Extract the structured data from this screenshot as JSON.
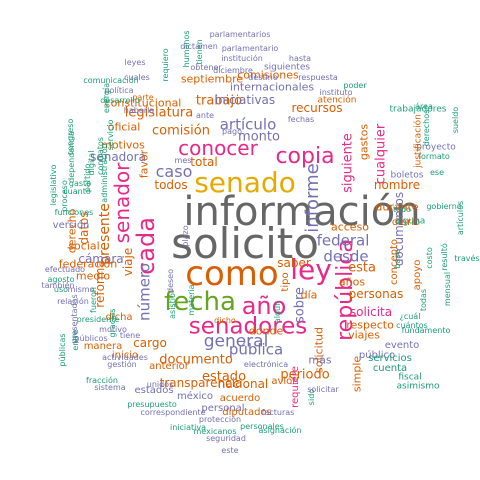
{
  "palette": {
    "teal": "#1b9e77",
    "orange": "#d95f02",
    "purple": "#7570b3",
    "magenta": "#e7298a",
    "green": "#66a61e",
    "gold": "#e6ab02",
    "brown": "#a6761d",
    "gray": "#666666"
  },
  "words": [
    {
      "text": "información"
    },
    {
      "text": "solicito"
    },
    {
      "text": "como"
    },
    {
      "text": "senado"
    },
    {
      "text": "fecha"
    },
    {
      "text": "senadores"
    },
    {
      "text": "año"
    },
    {
      "text": "ley"
    },
    {
      "text": "copia"
    },
    {
      "text": "conocer"
    },
    {
      "text": "cada"
    },
    {
      "text": "república"
    },
    {
      "text": "senador"
    },
    {
      "text": "general"
    },
    {
      "text": "informe"
    },
    {
      "text": "caso"
    },
    {
      "text": "artículo"
    },
    {
      "text": "desde"
    },
    {
      "text": "federal"
    },
    {
      "text": "pública"
    },
    {
      "text": "número"
    },
    {
      "text": "presente"
    },
    {
      "text": "periodo"
    },
    {
      "text": "estado"
    },
    {
      "text": "documento"
    },
    {
      "text": "comisión"
    },
    {
      "text": "legislatura"
    },
    {
      "text": "trabajo"
    },
    {
      "text": "monto"
    },
    {
      "text": "cualquier"
    },
    {
      "text": "siguiente"
    },
    {
      "text": "nombre"
    },
    {
      "text": "personas"
    },
    {
      "text": "solicita"
    },
    {
      "text": "esta"
    },
    {
      "text": "saber"
    },
    {
      "text": "sobre"
    },
    {
      "text": "iniciativas"
    },
    {
      "text": "recursos"
    },
    {
      "text": "documentos"
    },
    {
      "text": "transparencia"
    },
    {
      "text": "nacional"
    },
    {
      "text": "cámara"
    },
    {
      "text": "viaje"
    },
    {
      "text": "senadora"
    },
    {
      "text": "cargo"
    },
    {
      "text": "total"
    },
    {
      "text": "todos"
    },
    {
      "text": "derecho"
    },
    {
      "text": "reforma"
    },
    {
      "text": "datos"
    },
    {
      "text": "gastos"
    },
    {
      "text": "internacionales"
    },
    {
      "text": "constitucional"
    },
    {
      "text": "septiembre"
    },
    {
      "text": "comisiones"
    },
    {
      "text": "motivos"
    },
    {
      "text": "oficial"
    },
    {
      "text": "favor"
    },
    {
      "text": "solicitud"
    },
    {
      "text": "respecto"
    },
    {
      "text": "durante"
    },
    {
      "text": "viajes"
    },
    {
      "text": "acceso"
    },
    {
      "text": "años"
    },
    {
      "text": "día"
    },
    {
      "text": "donde"
    },
    {
      "text": "más"
    },
    {
      "text": "tipo"
    },
    {
      "text": "medio"
    },
    {
      "text": "social"
    },
    {
      "text": "federación"
    },
    {
      "text": "versión"
    },
    {
      "text": "dicha"
    },
    {
      "text": "manera"
    },
    {
      "text": "inicio"
    },
    {
      "text": "anterior"
    },
    {
      "text": "estados"
    },
    {
      "text": "méxico"
    },
    {
      "text": "personal"
    },
    {
      "text": "acuerdo"
    },
    {
      "text": "diputados"
    },
    {
      "text": "avión"
    },
    {
      "text": "requiere"
    },
    {
      "text": "simple"
    },
    {
      "text": "público"
    },
    {
      "text": "concepto"
    },
    {
      "text": "diario"
    },
    {
      "text": "evento"
    },
    {
      "text": "servicios"
    },
    {
      "text": "cuenta"
    },
    {
      "text": "fiscal"
    },
    {
      "text": "asimismo"
    },
    {
      "text": "apoyo"
    },
    {
      "text": "costo"
    },
    {
      "text": "resultó"
    },
    {
      "text": "través"
    },
    {
      "text": "base"
    },
    {
      "text": "todo"
    },
    {
      "text": "gobierno"
    },
    {
      "text": "artículos"
    },
    {
      "text": "alguna"
    },
    {
      "text": "boletos"
    },
    {
      "text": "ese"
    },
    {
      "text": "proyecto"
    },
    {
      "text": "formato"
    },
    {
      "text": "justificación"
    },
    {
      "text": "derechos"
    },
    {
      "text": "área"
    },
    {
      "text": "sueldo"
    },
    {
      "text": "trabajadores"
    },
    {
      "text": "fundamento"
    },
    {
      "text": "mensual"
    },
    {
      "text": "¿cuál"
    },
    {
      "text": "cuántos"
    },
    {
      "text": "todas"
    },
    {
      "text": "parlamentarios"
    },
    {
      "text": "dictamen"
    },
    {
      "text": "parlamentario"
    },
    {
      "text": "institución"
    },
    {
      "text": "hasta"
    },
    {
      "text": "obtener"
    },
    {
      "text": "siguientes"
    },
    {
      "text": "diciembre"
    },
    {
      "text": "destino"
    },
    {
      "text": "respuesta"
    },
    {
      "text": "instituto"
    },
    {
      "text": "poder"
    },
    {
      "text": "atención"
    },
    {
      "text": "fechas"
    },
    {
      "text": "parte"
    },
    {
      "text": "ante"
    },
    {
      "text": "pago"
    },
    {
      "text": "mes"
    },
    {
      "text": "leyes"
    },
    {
      "text": "cuales"
    },
    {
      "text": "requiero"
    },
    {
      "text": "humanos"
    },
    {
      "text": "tienen"
    },
    {
      "text": "comunicación"
    },
    {
      "text": "política"
    },
    {
      "text": "desarrollo"
    },
    {
      "text": "haberla"
    },
    {
      "text": "energía"
    },
    {
      "text": "servicio"
    },
    {
      "text": "congreso"
    },
    {
      "text": "dependencia"
    },
    {
      "text": "gasto"
    },
    {
      "text": "cuanto"
    },
    {
      "text": "partido"
    },
    {
      "text": "digital"
    },
    {
      "text": "contratos"
    },
    {
      "text": "administración"
    },
    {
      "text": "legislativo"
    },
    {
      "text": "proceso"
    },
    {
      "text": "funciones"
    },
    {
      "text": "efectuado"
    },
    {
      "text": "agosto"
    },
    {
      "text": "también"
    },
    {
      "text": "uso"
    },
    {
      "text": "mismo"
    },
    {
      "text": "relación"
    },
    {
      "text": "fueron"
    },
    {
      "text": "presidente"
    },
    {
      "text": "públicos"
    },
    {
      "text": "presentadas"
    },
    {
      "text": "públicas"
    },
    {
      "text": "entre"
    },
    {
      "text": "gracias"
    },
    {
      "text": "motivo"
    },
    {
      "text": "tiene"
    },
    {
      "text": "actividades"
    },
    {
      "text": "fracción"
    },
    {
      "text": "sistema"
    },
    {
      "text": "gestión"
    },
    {
      "text": "presupuesto"
    },
    {
      "text": "unidos"
    },
    {
      "text": "correspondiente"
    },
    {
      "text": "iniciativa"
    },
    {
      "text": "protección"
    },
    {
      "text": "mexicanos"
    },
    {
      "text": "personales"
    },
    {
      "text": "seguridad"
    },
    {
      "text": "facturas"
    },
    {
      "text": "asignación"
    },
    {
      "text": "este"
    },
    {
      "text": "electrónica"
    },
    {
      "text": "sido"
    },
    {
      "text": "dicho"
    },
    {
      "text": "materia"
    },
    {
      "text": "deseo"
    },
    {
      "text": "asistió"
    },
    {
      "text": "algún"
    },
    {
      "text": "plazo"
    },
    {
      "text": "solicitar"
    },
    {
      "text": "ejercicio"
    }
  ]
}
